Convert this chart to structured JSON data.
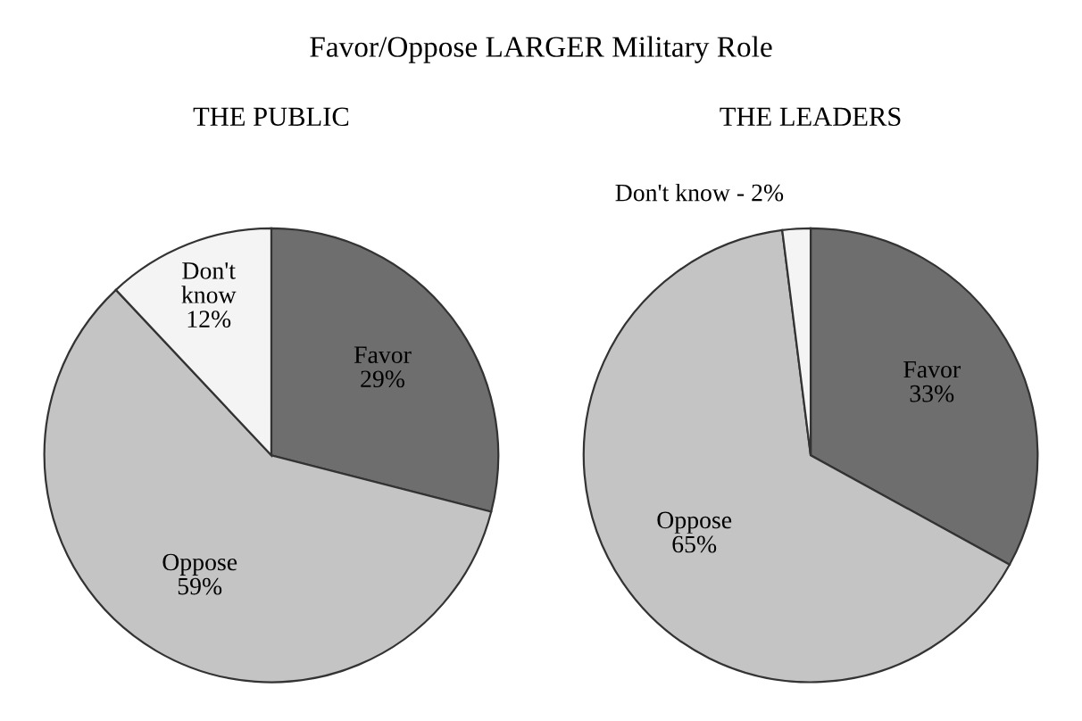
{
  "chart_data": [
    {
      "type": "pie",
      "title": "Favor/Oppose LARGER Military Role",
      "subtitle": "THE PUBLIC",
      "categories": [
        "Favor",
        "Oppose",
        "Don't\nknow"
      ],
      "values": [
        29,
        59,
        12
      ],
      "value_labels": [
        "29%",
        "59%",
        "12%"
      ],
      "colors": [
        "#6e6e6e",
        "#c4c4c4",
        "#f4f4f4"
      ]
    },
    {
      "type": "pie",
      "subtitle": "THE LEADERS",
      "categories": [
        "Favor",
        "Oppose",
        "Don't know - 2%"
      ],
      "values": [
        33,
        65,
        2
      ],
      "value_labels": [
        "33%",
        "65%",
        null
      ],
      "colors": [
        "#6e6e6e",
        "#c4c4c4",
        "#f4f4f4"
      ]
    }
  ]
}
